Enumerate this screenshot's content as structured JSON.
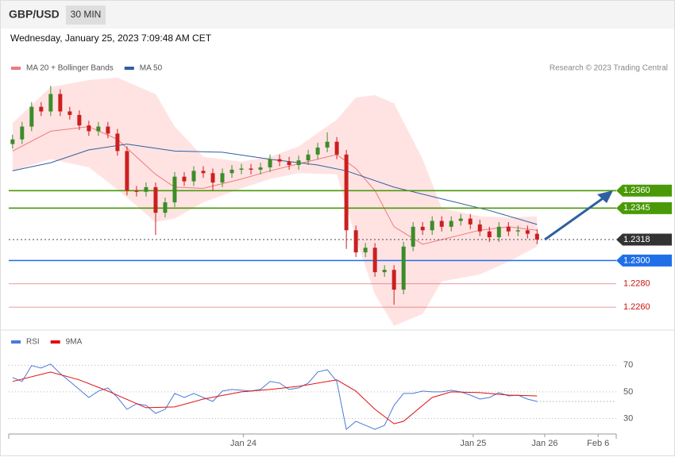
{
  "header": {
    "symbol": "GBP/USD",
    "interval": "30 MIN",
    "timestamp": "Wednesday, January 25, 2023 7:09:48 AM CET",
    "source": "Research © 2023 Trading Central"
  },
  "chart_data": [
    {
      "type": "candlestick",
      "xlim": [
        -0.4,
        63.3
      ],
      "ylim": [
        1.2241,
        1.2476
      ],
      "candles": {
        "up_color": "#3d8c2a",
        "down_color": "#cc1f1f",
        "open": [
          1.24,
          1.2404,
          1.2415,
          1.2432,
          1.2428,
          1.2443,
          1.2428,
          1.2425,
          1.2416,
          1.2411,
          1.2415,
          1.2409,
          1.2394,
          1.236,
          1.2359,
          1.2363,
          1.2341,
          1.235,
          1.2372,
          1.2368,
          1.2377,
          1.2375,
          1.2367,
          1.2375,
          1.2378,
          1.2379,
          1.2378,
          1.238,
          1.2387,
          1.2385,
          1.2382,
          1.2386,
          1.2391,
          1.2397,
          1.2402,
          1.2391,
          1.2326,
          1.2307,
          1.2311,
          1.229,
          1.2292,
          1.2275,
          1.2312,
          1.2329,
          1.2326,
          1.2334,
          1.2329,
          1.2334,
          1.2336,
          1.2331,
          1.2325,
          1.232,
          1.2329,
          1.2325,
          1.2326,
          1.2323
        ],
        "high": [
          1.2408,
          1.2419,
          1.2436,
          1.2436,
          1.245,
          1.2447,
          1.2432,
          1.2429,
          1.242,
          1.2419,
          1.2419,
          1.2413,
          1.2398,
          1.2364,
          1.2367,
          1.2367,
          1.2354,
          1.2376,
          1.2376,
          1.2381,
          1.2381,
          1.2379,
          1.2379,
          1.2382,
          1.2383,
          1.2383,
          1.2384,
          1.2391,
          1.2391,
          1.2389,
          1.239,
          1.2395,
          1.2401,
          1.241,
          1.2406,
          1.2395,
          1.233,
          1.2315,
          1.2315,
          1.2296,
          1.2296,
          1.2316,
          1.2333,
          1.2333,
          1.2338,
          1.2338,
          1.2338,
          1.234,
          1.234,
          1.2335,
          1.2329,
          1.2333,
          1.2333,
          1.233,
          1.233,
          1.2327
        ],
        "low": [
          1.2396,
          1.24,
          1.2411,
          1.2424,
          1.2424,
          1.2424,
          1.2421,
          1.2412,
          1.2407,
          1.2407,
          1.2405,
          1.239,
          1.2356,
          1.2355,
          1.2355,
          1.2322,
          1.2337,
          1.2346,
          1.2364,
          1.2364,
          1.2371,
          1.236,
          1.2363,
          1.2371,
          1.2374,
          1.2374,
          1.2374,
          1.2376,
          1.2381,
          1.2378,
          1.2378,
          1.2382,
          1.2387,
          1.2393,
          1.2387,
          1.231,
          1.2303,
          1.2303,
          1.2286,
          1.2286,
          1.2262,
          1.2271,
          1.2308,
          1.2322,
          1.2322,
          1.2325,
          1.2325,
          1.233,
          1.2327,
          1.2321,
          1.2316,
          1.2316,
          1.2321,
          1.2321,
          1.2319,
          1.2314
        ],
        "close": [
          1.2404,
          1.2415,
          1.2432,
          1.2428,
          1.2443,
          1.2428,
          1.2425,
          1.2416,
          1.2411,
          1.2415,
          1.2409,
          1.2394,
          1.236,
          1.2359,
          1.2363,
          1.2341,
          1.235,
          1.2372,
          1.2368,
          1.2377,
          1.2375,
          1.2367,
          1.2375,
          1.2378,
          1.2379,
          1.2378,
          1.238,
          1.2387,
          1.2385,
          1.2382,
          1.2386,
          1.2391,
          1.2397,
          1.2402,
          1.2391,
          1.2326,
          1.2307,
          1.2311,
          1.229,
          1.2292,
          1.2275,
          1.2312,
          1.2329,
          1.2326,
          1.2334,
          1.2329,
          1.2334,
          1.2336,
          1.2331,
          1.2325,
          1.232,
          1.2329,
          1.2325,
          1.2326,
          1.2323,
          1.2318
        ]
      },
      "series": [
        {
          "name": "MA 20 + Bollinger Bands",
          "color": "#f07a7a",
          "band_color": "#ffe3e3",
          "x": [
            0,
            4,
            8,
            11,
            15,
            17,
            20,
            24,
            27,
            30,
            34,
            36,
            38,
            40,
            43,
            45,
            49,
            52,
            55
          ],
          "values": [
            1.2394,
            1.2411,
            1.2415,
            1.2404,
            1.2374,
            1.2363,
            1.2362,
            1.237,
            1.2377,
            1.2383,
            1.2391,
            1.2379,
            1.236,
            1.2329,
            1.2314,
            1.2318,
            1.2326,
            1.2329,
            1.2326
          ],
          "upper": [
            1.2418,
            1.2449,
            1.2455,
            1.2457,
            1.2443,
            1.2415,
            1.2389,
            1.2385,
            1.2389,
            1.2398,
            1.2421,
            1.244,
            1.2442,
            1.2435,
            1.2387,
            1.2345,
            1.2338,
            1.2337,
            1.2338
          ],
          "lower": [
            1.2377,
            1.2387,
            1.238,
            1.2361,
            1.2333,
            1.2336,
            1.235,
            1.2362,
            1.237,
            1.2375,
            1.2374,
            1.2319,
            1.2271,
            1.2244,
            1.2254,
            1.2282,
            1.2288,
            1.2299,
            1.2312
          ]
        },
        {
          "name": "MA 50",
          "color": "#2f5f9f",
          "x": [
            0,
            4,
            8,
            12,
            17,
            22,
            27,
            32,
            35,
            40,
            45,
            50,
            55
          ],
          "values": [
            1.2377,
            1.2384,
            1.2395,
            1.24,
            1.2394,
            1.2393,
            1.2387,
            1.2382,
            1.2377,
            1.2363,
            1.2353,
            1.2343,
            1.2331
          ]
        }
      ],
      "levels": [
        {
          "value": 1.236,
          "label": "1.2360",
          "color": "#4a9a08",
          "box": true
        },
        {
          "value": 1.2345,
          "color": "#4a9a08",
          "box": true
        },
        {
          "value": 1.2318,
          "color": "#333333",
          "box": true,
          "dashed": true
        },
        {
          "value": 1.23,
          "label": "1.2300",
          "color": "#1f6fe8",
          "box": true
        },
        {
          "value": 1.228,
          "label": "1.2280",
          "color": "#cc1111",
          "box": false
        },
        {
          "value": 1.226,
          "label": "1.2260",
          "color": "#cc1111",
          "box": false
        }
      ]
    },
    {
      "type": "line",
      "xlim": [
        -0.4,
        63.3
      ],
      "ylim": [
        19,
        94
      ],
      "yticks": [
        30,
        50,
        70
      ],
      "xticks": [
        {
          "value": 24.2,
          "label": "Jan 24"
        },
        {
          "value": 48.3,
          "label": "Jan 25"
        },
        {
          "value": 55.8,
          "label": "Jan 26"
        },
        {
          "value": 61.4,
          "label": "Feb 6"
        }
      ],
      "series": [
        {
          "name": "RSI",
          "color": "#4a7ad8",
          "values": [
            60.7,
            57.8,
            69.7,
            67.9,
            70.9,
            63.7,
            57.8,
            51.8,
            45.8,
            50.6,
            53.0,
            45.8,
            36.9,
            41.0,
            39.9,
            33.9,
            36.9,
            48.8,
            45.8,
            48.8,
            45.8,
            42.8,
            50.6,
            51.8,
            51.2,
            50.6,
            51.8,
            57.8,
            56.6,
            51.8,
            53.0,
            56.6,
            64.9,
            66.7,
            57.8,
            21.9,
            27.9,
            24.9,
            21.9,
            24.9,
            39.9,
            48.8,
            48.8,
            50.6,
            50,
            50,
            51.2,
            50,
            47.6,
            44.6,
            45.8,
            49.4,
            47.0,
            47.6,
            44.6,
            42.8
          ]
        },
        {
          "name": "9MA",
          "color": "#e01010",
          "x": [
            0,
            4,
            7,
            10,
            14,
            17,
            20,
            24,
            27,
            30,
            34,
            36,
            38,
            40,
            41,
            44,
            46,
            49,
            52,
            55
          ],
          "values": [
            57.8,
            64.9,
            59.0,
            50.6,
            38.1,
            38.7,
            44.6,
            50,
            51.8,
            54.2,
            59.0,
            50.6,
            36.9,
            26.1,
            27.9,
            45.8,
            50,
            49.4,
            47.6,
            47.0
          ]
        }
      ]
    }
  ]
}
